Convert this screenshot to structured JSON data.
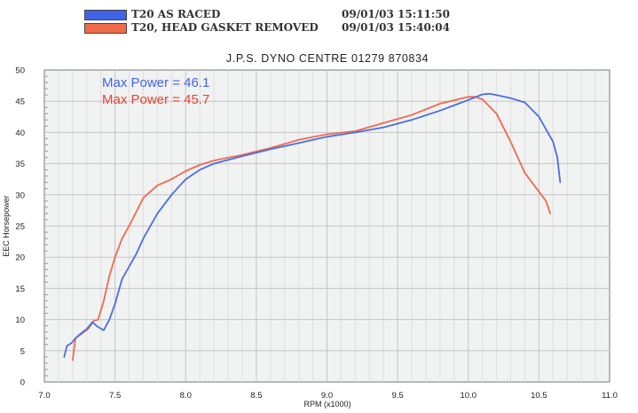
{
  "legend": [
    {
      "swatch_color": "#3f64e8",
      "label": "T20 AS RACED",
      "timestamp": "09/01/03 15:11:50"
    },
    {
      "swatch_color": "#f06a4c",
      "label": "T20, HEAD GASKET REMOVED",
      "timestamp": "09/01/03 15:40:04"
    }
  ],
  "chart_data": {
    "type": "line",
    "title": "J.P.S. DYNO CENTRE 01279 870834",
    "xlabel": "RPM (x1000)",
    "ylabel": "EEC Horsepower",
    "xlim": [
      7.0,
      11.0
    ],
    "ylim": [
      0,
      50
    ],
    "xticks": [
      "7.0",
      "7.5",
      "8.0",
      "8.5",
      "9.0",
      "9.5",
      "10.0",
      "10.5",
      "11.0"
    ],
    "yticks": [
      "0",
      "5",
      "10",
      "15",
      "20",
      "25",
      "30",
      "35",
      "40",
      "45",
      "50"
    ],
    "grid": true,
    "annotations": [
      {
        "text": "Max Power = 46.1",
        "color": "#3f64e8"
      },
      {
        "text": "Max Power = 45.7",
        "color": "#e8432f"
      }
    ],
    "series": [
      {
        "name": "T20 AS RACED",
        "color": "#4a6ee0",
        "x": [
          7.14,
          7.16,
          7.19,
          7.22,
          7.26,
          7.3,
          7.34,
          7.38,
          7.42,
          7.46,
          7.5,
          7.55,
          7.6,
          7.65,
          7.7,
          7.8,
          7.9,
          8.0,
          8.1,
          8.2,
          8.4,
          8.6,
          8.8,
          9.0,
          9.2,
          9.4,
          9.6,
          9.8,
          10.0,
          10.1,
          10.15,
          10.2,
          10.3,
          10.4,
          10.5,
          10.55,
          10.6,
          10.63,
          10.65
        ],
        "y": [
          4.0,
          5.8,
          6.2,
          7.0,
          7.8,
          8.5,
          9.6,
          8.8,
          8.3,
          10.0,
          12.5,
          16.5,
          18.5,
          20.5,
          23.0,
          27.0,
          30.0,
          32.5,
          34.0,
          35.0,
          36.2,
          37.3,
          38.3,
          39.3,
          40.0,
          40.8,
          42.0,
          43.5,
          45.2,
          46.1,
          46.2,
          46.0,
          45.5,
          44.8,
          42.5,
          40.5,
          38.5,
          36.0,
          32.0
        ]
      },
      {
        "name": "T20, HEAD GASKET REMOVED",
        "color": "#ef6a4f",
        "x": [
          7.2,
          7.22,
          7.25,
          7.28,
          7.31,
          7.35,
          7.38,
          7.42,
          7.46,
          7.5,
          7.55,
          7.6,
          7.7,
          7.8,
          7.9,
          8.0,
          8.1,
          8.2,
          8.4,
          8.6,
          8.8,
          9.0,
          9.2,
          9.4,
          9.6,
          9.8,
          10.0,
          10.05,
          10.1,
          10.2,
          10.3,
          10.4,
          10.5,
          10.55,
          10.58
        ],
        "y": [
          3.5,
          7.0,
          7.5,
          8.0,
          8.5,
          9.8,
          10.0,
          13.0,
          17.0,
          20.0,
          23.0,
          25.0,
          29.5,
          31.5,
          32.5,
          33.8,
          34.8,
          35.5,
          36.4,
          37.5,
          38.8,
          39.7,
          40.2,
          41.5,
          42.8,
          44.6,
          45.7,
          45.7,
          45.3,
          43.0,
          38.5,
          33.5,
          30.5,
          29.0,
          27.0
        ]
      }
    ]
  }
}
